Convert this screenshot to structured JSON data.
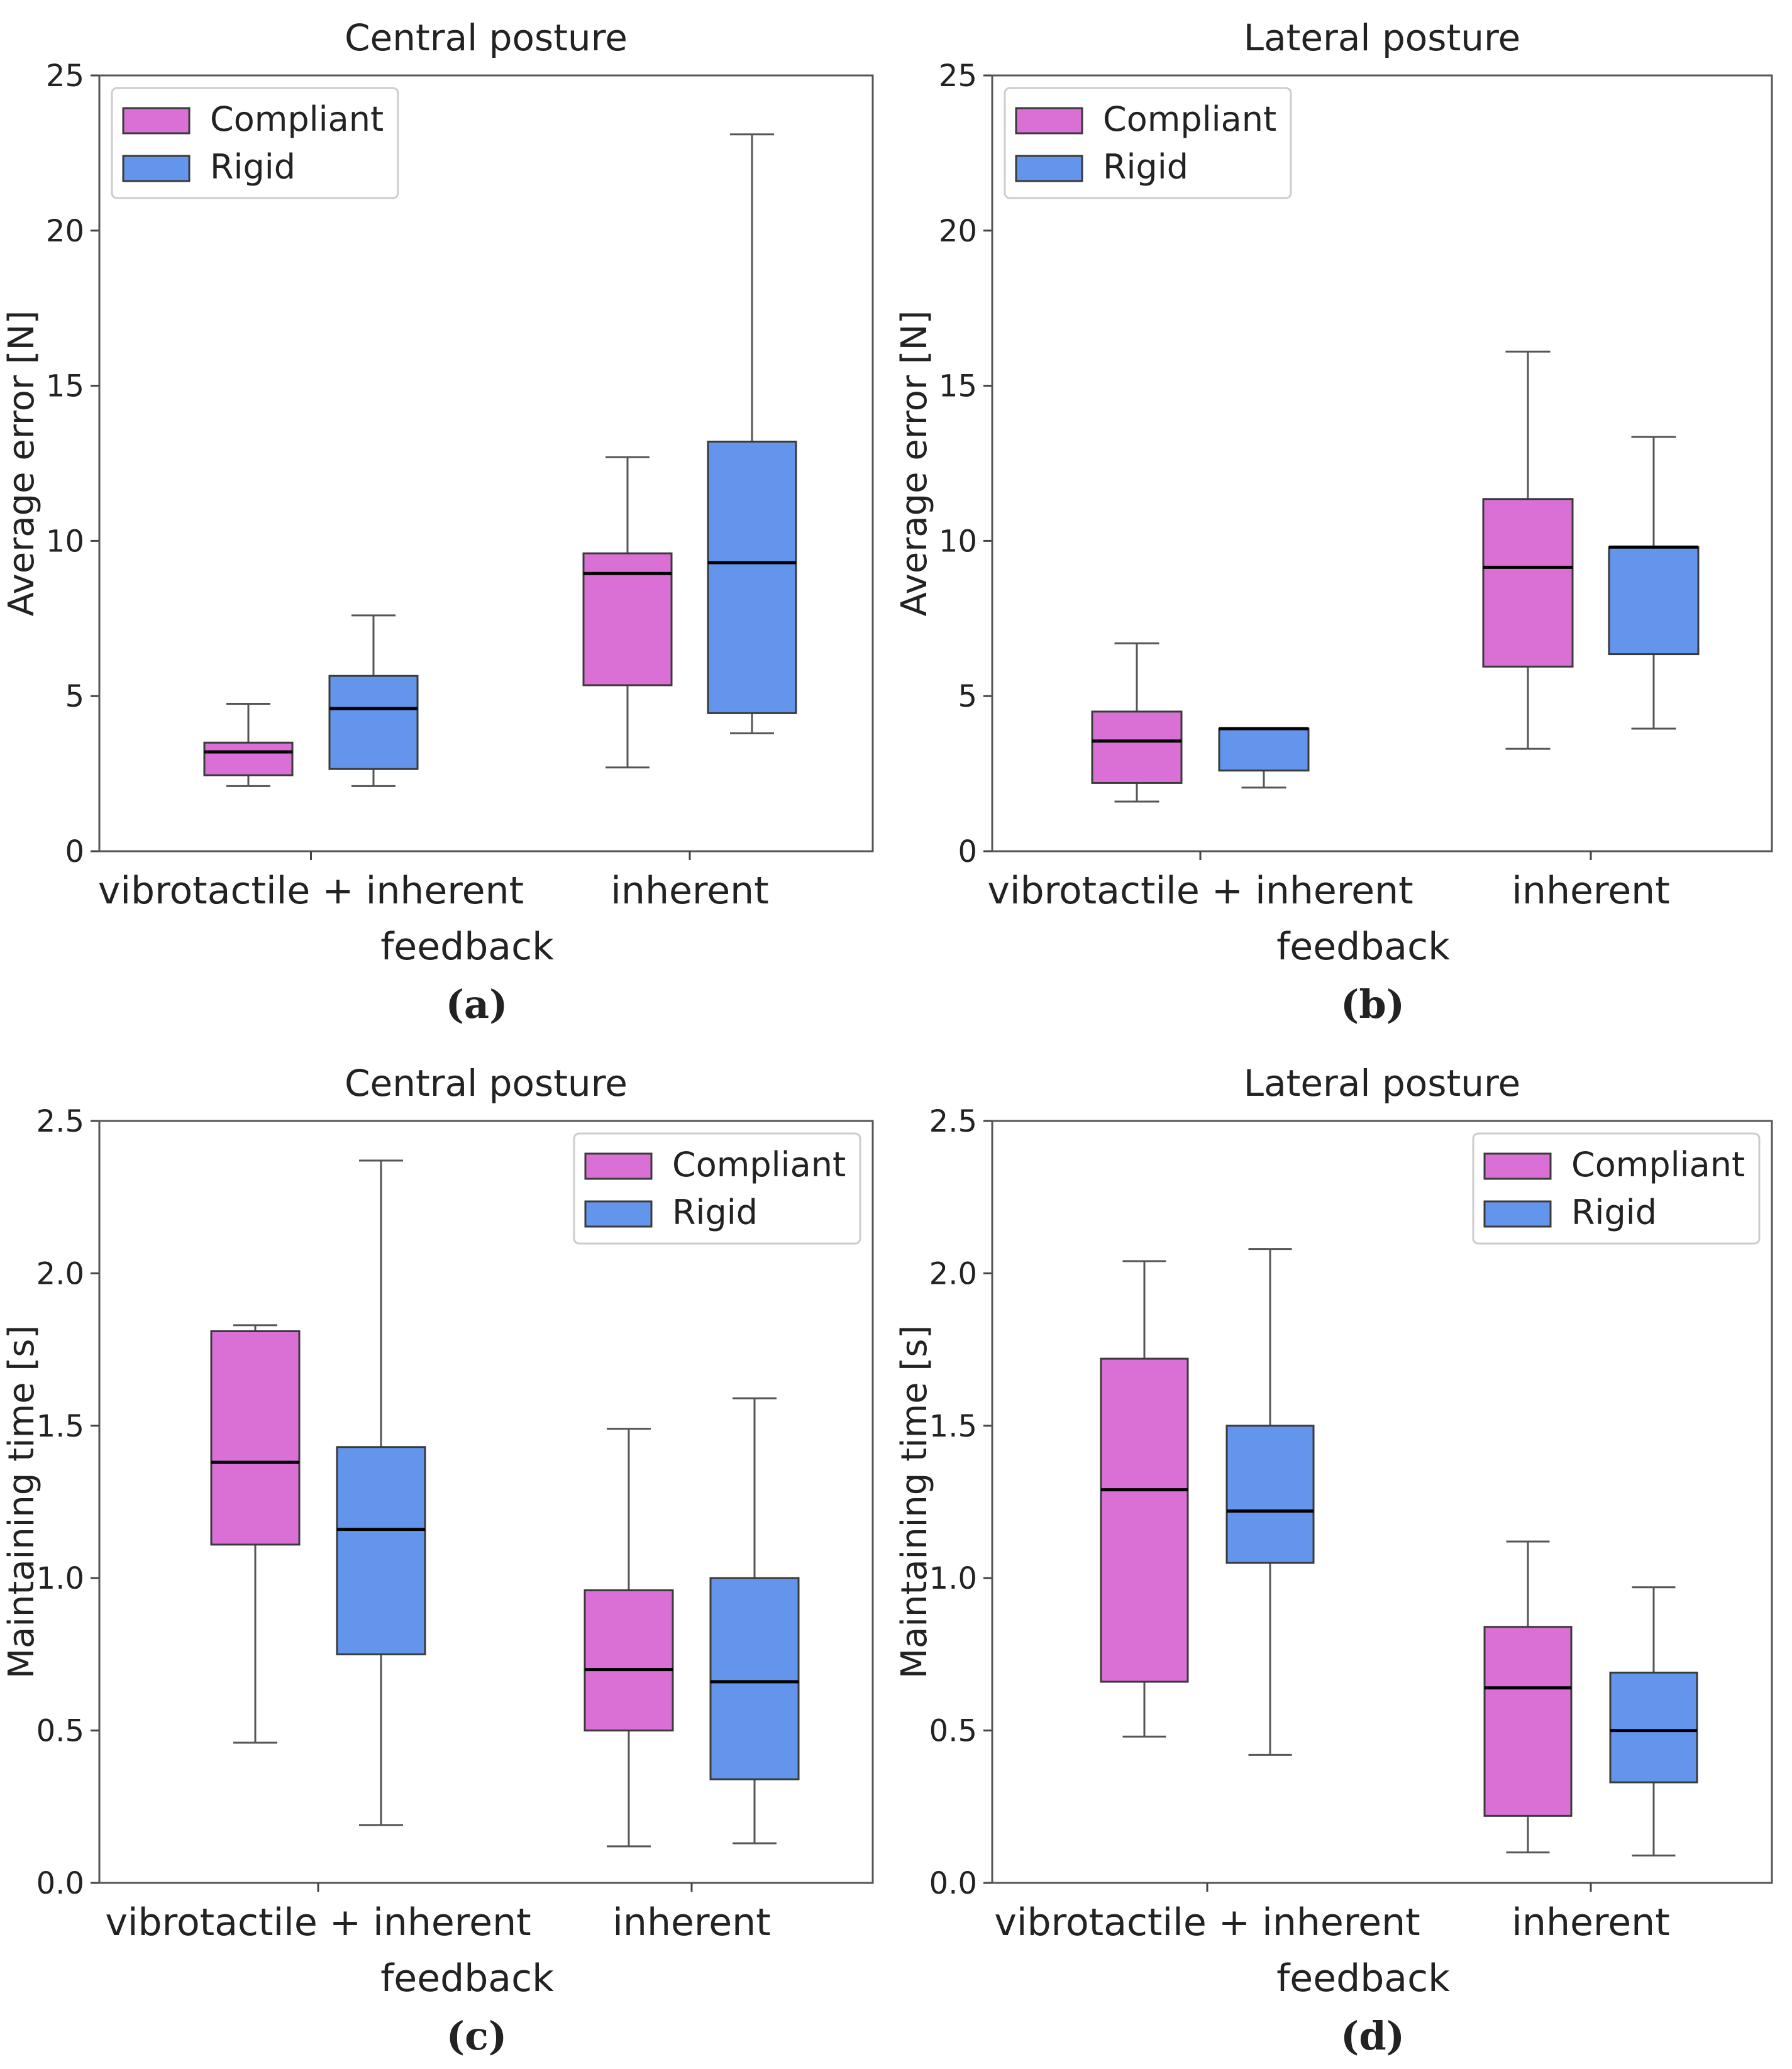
{
  "colors": {
    "compliant": "#da70d6",
    "rigid": "#6495ed",
    "edge": "#3a3a3a",
    "median": "#000000",
    "whisker": "#555555"
  },
  "chart_data": [
    {
      "id": "a",
      "type": "box",
      "panel_label": "(a)",
      "title": "Central posture",
      "xlabel": "feedback",
      "ylabel": "Average error [N]",
      "ylim": [
        0,
        25
      ],
      "yticks": [
        0,
        5,
        10,
        15,
        20,
        25
      ],
      "ytick_labels": [
        "0",
        "5",
        "10",
        "15",
        "20",
        "25"
      ],
      "legend_position": "top-left",
      "categories": [
        "vibrotactile + inherent",
        "inherent"
      ],
      "series": [
        {
          "name": "Compliant",
          "color_key": "compliant",
          "boxes": [
            {
              "whislo": 2.1,
              "q1": 2.45,
              "med": 3.2,
              "q3": 3.5,
              "whishi": 4.75
            },
            {
              "whislo": 2.7,
              "q1": 5.35,
              "med": 8.95,
              "q3": 9.6,
              "whishi": 12.7
            }
          ]
        },
        {
          "name": "Rigid",
          "color_key": "rigid",
          "boxes": [
            {
              "whislo": 2.1,
              "q1": 2.65,
              "med": 4.6,
              "q3": 5.65,
              "whishi": 7.6
            },
            {
              "whislo": 3.8,
              "q1": 4.45,
              "med": 9.3,
              "q3": 13.2,
              "whishi": 23.1
            }
          ]
        }
      ]
    },
    {
      "id": "b",
      "type": "box",
      "panel_label": "(b)",
      "title": "Lateral posture",
      "xlabel": "feedback",
      "ylabel": "Average error [N]",
      "ylim": [
        0,
        25
      ],
      "yticks": [
        0,
        5,
        10,
        15,
        20,
        25
      ],
      "ytick_labels": [
        "0",
        "5",
        "10",
        "15",
        "20",
        "25"
      ],
      "legend_position": "top-left",
      "categories": [
        "vibrotactile + inherent",
        "inherent"
      ],
      "series": [
        {
          "name": "Compliant",
          "color_key": "compliant",
          "boxes": [
            {
              "whislo": 1.6,
              "q1": 2.2,
              "med": 3.55,
              "q3": 4.5,
              "whishi": 6.7
            },
            {
              "whislo": 3.3,
              "q1": 5.95,
              "med": 9.15,
              "q3": 11.35,
              "whishi": 16.1
            }
          ]
        },
        {
          "name": "Rigid",
          "color_key": "rigid",
          "boxes": [
            {
              "whislo": 2.05,
              "q1": 2.6,
              "med": 3.95,
              "q3": 3.95,
              "whishi": 3.95
            },
            {
              "whislo": 3.95,
              "q1": 6.35,
              "med": 9.8,
              "q3": 9.8,
              "whishi": 13.35
            }
          ]
        }
      ]
    },
    {
      "id": "c",
      "type": "box",
      "panel_label": "(c)",
      "title": "Central posture",
      "xlabel": "feedback",
      "ylabel": "Maintaining time [s]",
      "ylim": [
        0,
        2.5
      ],
      "yticks": [
        0,
        0.5,
        1.0,
        1.5,
        2.0,
        2.5
      ],
      "ytick_labels": [
        "0.0",
        "0.5",
        "1.0",
        "1.5",
        "2.0",
        "2.5"
      ],
      "legend_position": "top-right",
      "categories": [
        "vibrotactile + inherent",
        "inherent"
      ],
      "series": [
        {
          "name": "Compliant",
          "color_key": "compliant",
          "boxes": [
            {
              "whislo": 0.46,
              "q1": 1.11,
              "med": 1.38,
              "q3": 1.81,
              "whishi": 1.83
            },
            {
              "whislo": 0.12,
              "q1": 0.5,
              "med": 0.7,
              "q3": 0.96,
              "whishi": 1.49
            }
          ]
        },
        {
          "name": "Rigid",
          "color_key": "rigid",
          "boxes": [
            {
              "whislo": 0.19,
              "q1": 0.75,
              "med": 1.16,
              "q3": 1.43,
              "whishi": 2.37
            },
            {
              "whislo": 0.13,
              "q1": 0.34,
              "med": 0.66,
              "q3": 1.0,
              "whishi": 1.59
            }
          ]
        }
      ]
    },
    {
      "id": "d",
      "type": "box",
      "panel_label": "(d)",
      "title": "Lateral posture",
      "xlabel": "feedback",
      "ylabel": "Maintaining time [s]",
      "ylim": [
        0,
        2.5
      ],
      "yticks": [
        0,
        0.5,
        1.0,
        1.5,
        2.0,
        2.5
      ],
      "ytick_labels": [
        "0.0",
        "0.5",
        "1.0",
        "1.5",
        "2.0",
        "2.5"
      ],
      "legend_position": "top-right",
      "categories": [
        "vibrotactile + inherent",
        "inherent"
      ],
      "series": [
        {
          "name": "Compliant",
          "color_key": "compliant",
          "boxes": [
            {
              "whislo": 0.48,
              "q1": 0.66,
              "med": 1.29,
              "q3": 1.72,
              "whishi": 2.04
            },
            {
              "whislo": 0.1,
              "q1": 0.22,
              "med": 0.64,
              "q3": 0.84,
              "whishi": 1.12
            }
          ]
        },
        {
          "name": "Rigid",
          "color_key": "rigid",
          "boxes": [
            {
              "whislo": 0.42,
              "q1": 1.05,
              "med": 1.22,
              "q3": 1.5,
              "whishi": 2.08
            },
            {
              "whislo": 0.09,
              "q1": 0.33,
              "med": 0.5,
              "q3": 0.69,
              "whishi": 0.97
            }
          ]
        }
      ]
    }
  ]
}
